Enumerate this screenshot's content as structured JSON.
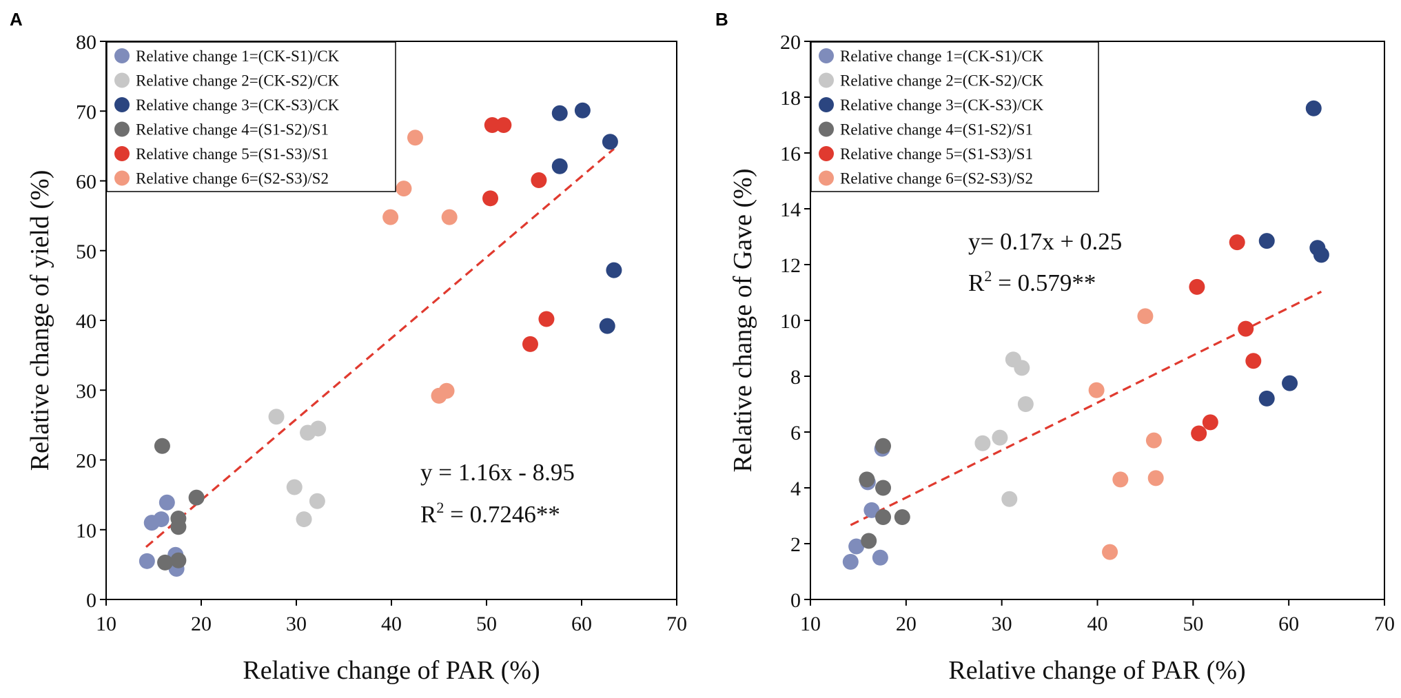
{
  "chart_data": [
    {
      "type": "scatter",
      "panel": "A",
      "xlabel": "Relative change of PAR (%)",
      "ylabel": "Relative change of yield (%)",
      "xlim": [
        10,
        70
      ],
      "ylim": [
        0,
        80
      ],
      "xticks": [
        10,
        20,
        30,
        40,
        50,
        60,
        70
      ],
      "yticks": [
        0,
        10,
        20,
        30,
        40,
        50,
        60,
        70,
        80
      ],
      "legend_position": "top-left",
      "equation": "y = 1.16x - 8.95",
      "r2_prefix": "R",
      "r2_sup": "2",
      "r2_value": " = 0.7246**",
      "fit": {
        "slope": 1.16,
        "intercept": -8.95,
        "x_range": [
          14.2,
          63.4
        ],
        "color": "#e03a2f"
      },
      "series": [
        {
          "name": "Relative change 1=(CK-S1)/CK",
          "color": "#7f8cbb",
          "points": [
            [
              14.3,
              5.5
            ],
            [
              14.8,
              11.0
            ],
            [
              15.8,
              11.5
            ],
            [
              16.4,
              13.9
            ],
            [
              17.3,
              6.4
            ],
            [
              17.4,
              4.4
            ]
          ]
        },
        {
          "name": "Relative change 2=(CK-S2)/CK",
          "color": "#c7c7c7",
          "points": [
            [
              27.9,
              26.2
            ],
            [
              29.8,
              16.1
            ],
            [
              30.8,
              11.5
            ],
            [
              31.2,
              23.9
            ],
            [
              32.3,
              24.5
            ],
            [
              32.2,
              14.1
            ]
          ]
        },
        {
          "name": "Relative change 3=(CK-S3)/CK",
          "color": "#2b4580",
          "points": [
            [
              57.7,
              69.7
            ],
            [
              60.1,
              70.1
            ],
            [
              63.0,
              65.6
            ],
            [
              57.7,
              62.1
            ],
            [
              63.4,
              47.2
            ],
            [
              62.7,
              39.2
            ]
          ]
        },
        {
          "name": "Relative change 4=(S1-S2)/S1",
          "color": "#6e6e6e",
          "points": [
            [
              15.9,
              22.0
            ],
            [
              19.5,
              14.6
            ],
            [
              17.6,
              11.6
            ],
            [
              17.6,
              10.4
            ],
            [
              16.2,
              5.3
            ],
            [
              17.6,
              5.6
            ]
          ]
        },
        {
          "name": "Relative change 5=(S1-S3)/S1",
          "color": "#e03a2f",
          "points": [
            [
              50.6,
              68.0
            ],
            [
              51.8,
              68.0
            ],
            [
              55.5,
              60.1
            ],
            [
              50.4,
              57.5
            ],
            [
              56.3,
              40.2
            ],
            [
              54.6,
              36.6
            ]
          ]
        },
        {
          "name": "Relative change 6=(S2-S3)/S2",
          "color": "#f29a80",
          "points": [
            [
              42.5,
              66.2
            ],
            [
              41.3,
              58.9
            ],
            [
              39.9,
              54.8
            ],
            [
              46.1,
              54.8
            ],
            [
              45.8,
              29.9
            ],
            [
              45.0,
              29.2
            ]
          ]
        }
      ]
    },
    {
      "type": "scatter",
      "panel": "B",
      "xlabel": "Relative change of PAR (%)",
      "ylabel": "Relative change of Gave (%)",
      "xlim": [
        10,
        70
      ],
      "ylim": [
        0,
        20
      ],
      "xticks": [
        10,
        20,
        30,
        40,
        50,
        60,
        70
      ],
      "yticks": [
        0,
        2,
        4,
        6,
        8,
        10,
        12,
        14,
        16,
        18,
        20
      ],
      "legend_position": "top-left",
      "equation": "y= 0.17x + 0.25",
      "r2_prefix": "R",
      "r2_sup": "2",
      "r2_value": " = 0.579**",
      "fit": {
        "slope": 0.17,
        "intercept": 0.25,
        "x_range": [
          14.2,
          63.4
        ],
        "color": "#e03a2f"
      },
      "series": [
        {
          "name": "Relative change 1=(CK-S1)/CK",
          "color": "#7f8cbb",
          "points": [
            [
              14.2,
              1.35
            ],
            [
              14.8,
              1.9
            ],
            [
              17.3,
              1.5
            ],
            [
              16.4,
              3.2
            ],
            [
              16.0,
              4.2
            ],
            [
              17.5,
              5.4
            ]
          ]
        },
        {
          "name": "Relative change 2=(CK-S2)/CK",
          "color": "#c7c7c7",
          "points": [
            [
              31.2,
              8.6
            ],
            [
              32.1,
              8.3
            ],
            [
              32.5,
              7.0
            ],
            [
              29.8,
              5.8
            ],
            [
              28.0,
              5.6
            ],
            [
              30.8,
              3.6
            ]
          ]
        },
        {
          "name": "Relative change 3=(CK-S3)/CK",
          "color": "#2b4580",
          "points": [
            [
              62.6,
              17.6
            ],
            [
              57.7,
              12.85
            ],
            [
              63.0,
              12.6
            ],
            [
              63.4,
              12.35
            ],
            [
              60.1,
              7.75
            ],
            [
              57.7,
              7.2
            ]
          ]
        },
        {
          "name": "Relative change 4=(S1-S2)/S1",
          "color": "#6e6e6e",
          "points": [
            [
              15.9,
              4.3
            ],
            [
              17.6,
              5.5
            ],
            [
              17.6,
              4.0
            ],
            [
              16.1,
              2.1
            ],
            [
              17.6,
              2.95
            ],
            [
              19.6,
              2.95
            ]
          ]
        },
        {
          "name": "Relative change 5=(S1-S3)/S1",
          "color": "#e03a2f",
          "points": [
            [
              54.6,
              12.8
            ],
            [
              50.4,
              11.2
            ],
            [
              55.5,
              9.7
            ],
            [
              56.3,
              8.55
            ],
            [
              51.8,
              6.35
            ],
            [
              50.6,
              5.95
            ]
          ]
        },
        {
          "name": "Relative change 6=(S2-S3)/S2",
          "color": "#f29a80",
          "points": [
            [
              45.0,
              10.15
            ],
            [
              39.9,
              7.5
            ],
            [
              45.9,
              5.7
            ],
            [
              46.1,
              4.35
            ],
            [
              42.4,
              4.3
            ],
            [
              41.3,
              1.7
            ]
          ]
        }
      ]
    }
  ]
}
